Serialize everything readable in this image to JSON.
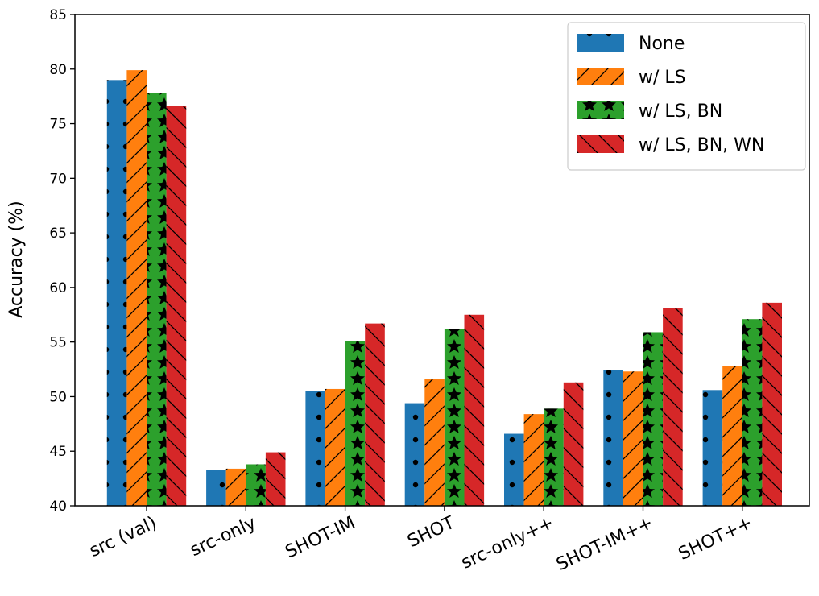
{
  "chart_data": {
    "type": "bar",
    "title": "",
    "xlabel": "",
    "ylabel": "Accuracy (%)",
    "ylim": [
      40,
      85
    ],
    "yticks": [
      40,
      45,
      50,
      55,
      60,
      65,
      70,
      75,
      80,
      85
    ],
    "categories": [
      "src (val)",
      "src-only",
      "SHOT-IM",
      "SHOT",
      "src-only++",
      "SHOT-IM++",
      "SHOT++"
    ],
    "series": [
      {
        "name": "None",
        "color": "#1f77b4",
        "hatch": "dots",
        "values": [
          79.0,
          43.3,
          50.5,
          49.4,
          46.6,
          52.4,
          50.6
        ]
      },
      {
        "name": "w/ LS",
        "color": "#ff7f0e",
        "hatch": "slash",
        "values": [
          79.9,
          43.4,
          50.7,
          51.6,
          48.4,
          52.3,
          52.8
        ]
      },
      {
        "name": "w/ LS, BN",
        "color": "#2ca02c",
        "hatch": "stars",
        "values": [
          77.8,
          43.8,
          55.1,
          56.2,
          48.9,
          55.9,
          57.1
        ]
      },
      {
        "name": "w/ LS, BN, WN",
        "color": "#d62728",
        "hatch": "backslash",
        "values": [
          76.6,
          44.9,
          56.7,
          57.5,
          51.3,
          58.1,
          58.6
        ]
      }
    ],
    "grid": false,
    "legend_position": "top-right"
  }
}
